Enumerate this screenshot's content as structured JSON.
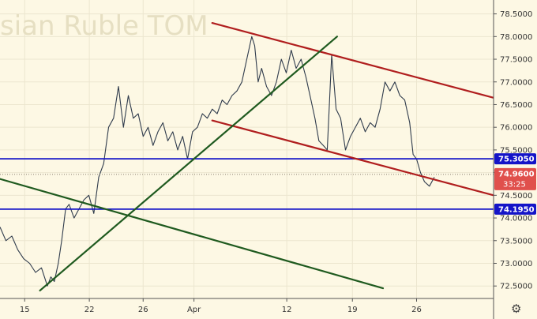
{
  "chart_data": {
    "type": "line",
    "title": "Russian Ruble TOM",
    "title_visible": "sian Ruble TOM",
    "ylim": [
      72.15,
      78.75
    ],
    "xlim": [
      0,
      100
    ],
    "y_ticks": [
      "72.5000",
      "73.0000",
      "73.5000",
      "74.0000",
      "74.5000",
      "75.0000",
      "75.5000",
      "76.0000",
      "76.5000",
      "77.0000",
      "77.5000",
      "78.0000",
      "78.5000"
    ],
    "y_tick_values": [
      72.5,
      73.0,
      73.5,
      74.0,
      74.5,
      75.0,
      75.5,
      76.0,
      76.5,
      77.0,
      77.5,
      78.0,
      78.5
    ],
    "x_ticks": [
      {
        "label": "15",
        "x": 5.0
      },
      {
        "label": "22",
        "x": 18.1
      },
      {
        "label": "26",
        "x": 29.0
      },
      {
        "label": "Apr",
        "x": 39.3
      },
      {
        "label": "12",
        "x": 58.1
      },
      {
        "label": "19",
        "x": 71.4
      },
      {
        "label": "26",
        "x": 84.4
      }
    ],
    "grid": true,
    "series": [
      {
        "color": "#2f3b4c",
        "x": [
          0,
          1.2,
          2.4,
          3.6,
          4.8,
          6,
          7.2,
          8.4,
          9.6,
          10.3,
          11,
          11.8,
          12.5,
          13.3,
          14,
          15,
          16,
          17,
          18,
          19,
          20,
          21,
          22,
          23,
          24,
          25,
          26,
          27,
          28,
          29,
          30,
          31,
          32,
          33,
          34,
          35,
          36,
          37,
          38,
          39,
          40,
          41,
          42,
          43,
          44,
          45,
          46,
          47,
          48,
          49,
          50,
          51,
          51.6,
          52.3,
          53,
          54,
          55,
          56,
          57,
          58,
          59,
          60,
          61,
          62,
          63,
          63.8,
          64.6,
          65.5,
          66.3,
          67.2,
          68.1,
          69,
          70,
          71,
          72,
          73,
          74,
          75,
          76,
          77,
          78,
          79,
          80,
          81,
          82,
          83,
          83.7,
          84.4,
          85.2,
          86,
          87,
          88
        ],
        "values": [
          73.8,
          73.5,
          73.6,
          73.3,
          73.1,
          73.0,
          72.8,
          72.9,
          72.5,
          72.7,
          72.6,
          73.0,
          73.5,
          74.2,
          74.3,
          74.0,
          74.2,
          74.4,
          74.5,
          74.1,
          74.9,
          75.2,
          76.0,
          76.2,
          76.9,
          76.0,
          76.7,
          76.2,
          76.3,
          75.8,
          76.0,
          75.6,
          75.9,
          76.1,
          75.7,
          75.9,
          75.5,
          75.8,
          75.3,
          75.9,
          76.0,
          76.3,
          76.2,
          76.4,
          76.3,
          76.6,
          76.5,
          76.7,
          76.8,
          77.0,
          77.5,
          78.0,
          77.8,
          77.0,
          77.3,
          76.9,
          76.7,
          77.0,
          77.5,
          77.2,
          77.7,
          77.3,
          77.5,
          77.1,
          76.6,
          76.2,
          75.7,
          75.6,
          75.5,
          77.6,
          76.4,
          76.2,
          75.5,
          75.8,
          76.0,
          76.2,
          75.9,
          76.1,
          76.0,
          76.4,
          77.0,
          76.8,
          77.0,
          76.7,
          76.6,
          76.1,
          75.4,
          75.3,
          75.0,
          74.8,
          74.7,
          74.9
        ]
      }
    ],
    "trendlines": [
      {
        "color": "#b01e1e",
        "x": [
          43,
          100
        ],
        "y": [
          78.3,
          76.65
        ]
      },
      {
        "color": "#b01e1e",
        "x": [
          43,
          100
        ],
        "y": [
          76.15,
          74.5
        ]
      },
      {
        "color": "#1f5a1f",
        "x": [
          8.1,
          68.3
        ],
        "y": [
          72.4,
          78.0
        ]
      },
      {
        "color": "#1f5a1f",
        "x": [
          0,
          77.6
        ],
        "y": [
          74.86,
          72.45
        ]
      }
    ],
    "hlines": [
      {
        "value": 75.305,
        "color": "#1414c8"
      },
      {
        "value": 74.195,
        "color": "#1414c8"
      }
    ],
    "price_labels": [
      {
        "label": "75.3050",
        "value": 75.305,
        "bg": "#1414c8"
      },
      {
        "label": "74.9600",
        "sub": "33:25",
        "value": 74.96,
        "bg": "#e0504c"
      },
      {
        "label": "74.1950",
        "value": 74.195,
        "bg": "#1414c8"
      }
    ],
    "current_price": 74.96,
    "countdown": "33:25"
  },
  "icons": {
    "settings": "gear-icon",
    "settings_glyph": "⚙"
  },
  "colors": {
    "background": "#fdf8e4",
    "grid": "#ece6cf",
    "axis": "#555555"
  }
}
